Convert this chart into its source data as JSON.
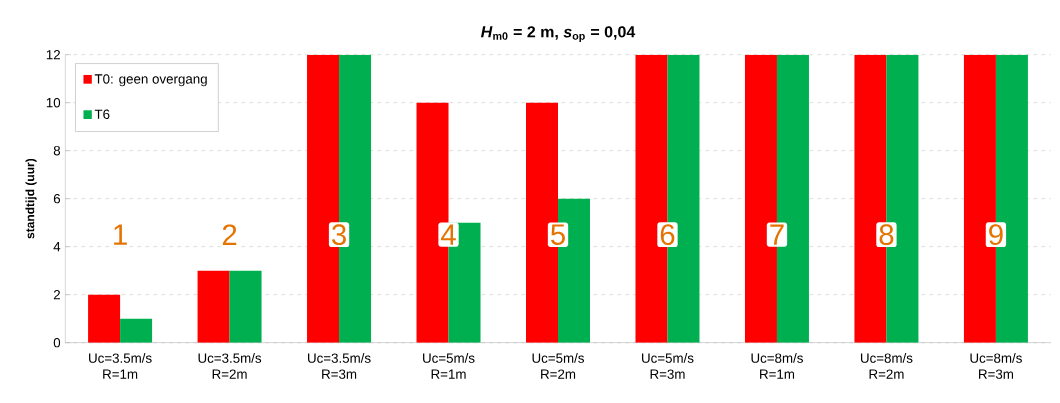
{
  "chart_data": {
    "type": "bar",
    "title": "*H*$_{m0}$ = 2 m, *s*$_{op}$ = 0,04",
    "ylabel": "standtijd (uur)",
    "categories": [
      "Uc=3.5m/s R=1m",
      "Uc=3.5m/s R=2m",
      "Uc=3.5m/s R=3m",
      "Uc=5m/s R=1m",
      "Uc=5m/s R=2m",
      "Uc=5m/s R=3m",
      "Uc=8m/s R=1m",
      "Uc=8m/s R=2m",
      "Uc=8m/s R=3m"
    ],
    "series": [
      {
        "name": "T0: geen overgang",
        "color": "#ff0000",
        "values": [
          2,
          3,
          12,
          10,
          10,
          12,
          12,
          12,
          12
        ]
      },
      {
        "name": "T6",
        "color": "#00b050",
        "values": [
          1,
          3,
          12,
          5,
          6,
          12,
          12,
          12,
          12
        ]
      }
    ],
    "ylim": [
      0,
      12
    ],
    "yticks": [
      0,
      2,
      4,
      6,
      8,
      10,
      12
    ],
    "grid": "y",
    "legend": "top left",
    "annotations": [
      "1",
      "2",
      "3",
      "4",
      "5",
      "6",
      "7",
      "8",
      "9"
    ]
  }
}
